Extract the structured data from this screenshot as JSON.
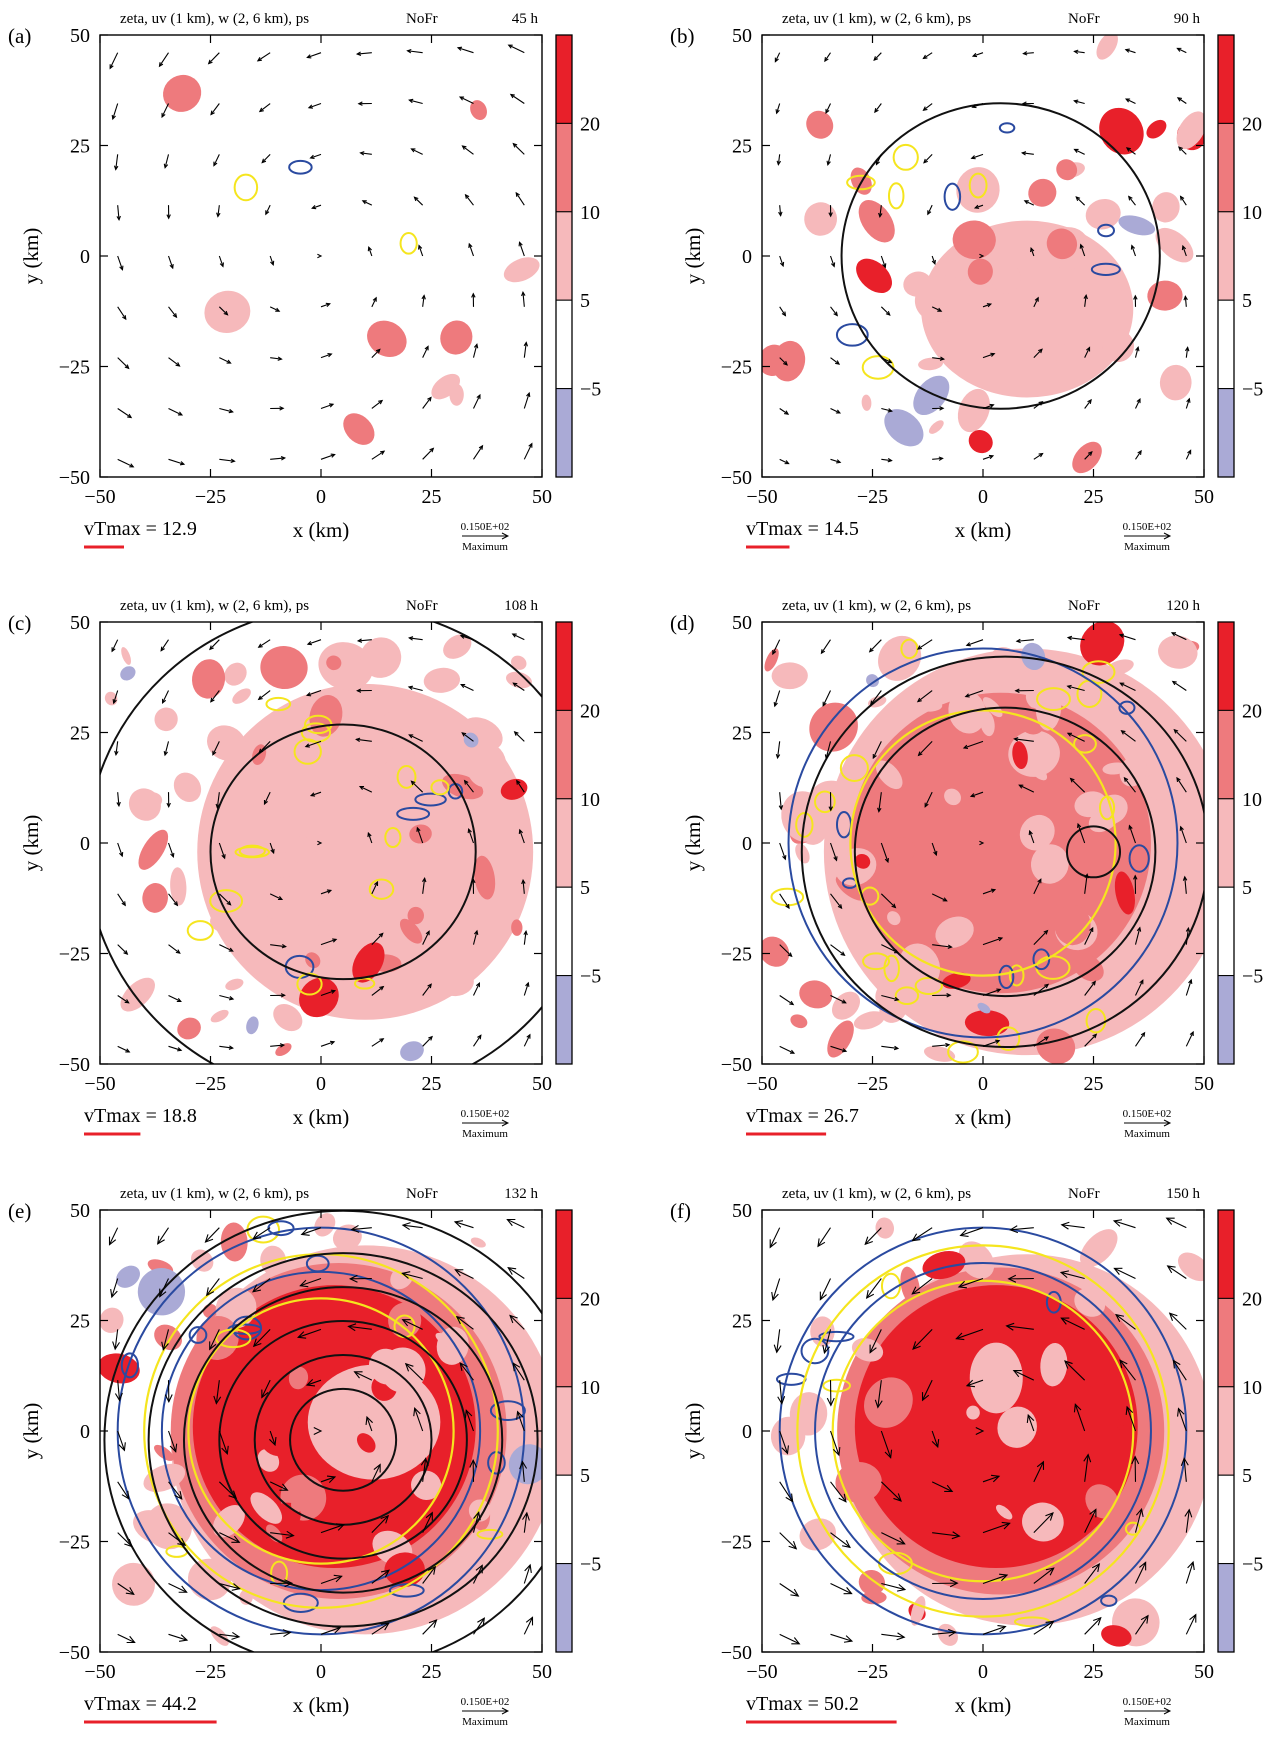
{
  "figure": {
    "panel_title": "zeta, uv (1 km), w (2, 6 km), ps",
    "experiment": "NoFr",
    "xlabel": "x (km)",
    "ylabel": "y (km)",
    "x_ticks": [
      "−50",
      "−25",
      "0",
      "25",
      "50"
    ],
    "y_ticks": [
      "50",
      "25",
      "0",
      "−25",
      "−50"
    ],
    "colorbar_labels": [
      "20",
      "10",
      "5",
      "−5"
    ],
    "colorbar_colors": [
      "#e8202a",
      "#ee7a7d",
      "#f6b9bb",
      "#ffffff",
      "#aaaad6"
    ],
    "ref_vector_value": "0.150E+02",
    "ref_vector_label": "Maximum",
    "vtmax_prefix": "vTmax = "
  },
  "colors": {
    "zeta_strong": "#e8202a",
    "zeta_mid": "#ee7a7d",
    "zeta_weak": "#f6b9bb",
    "zeta_negative": "#aaaad6",
    "updraft_2km": "#f5e51e",
    "updraft_6km": "#2a4aa0",
    "pressure": "#111111",
    "vtmax_bar": "#e8202a"
  },
  "chart_data": [
    {
      "type": "heatmap",
      "label": "(a)",
      "time": "45 h",
      "vtmax": "12.9",
      "xlim": [
        -50,
        50
      ],
      "ylim": [
        -50,
        50
      ],
      "intensity": 0,
      "psc_rings": [],
      "rings_6": [],
      "rings_2": []
    },
    {
      "type": "heatmap",
      "label": "(b)",
      "time": "90 h",
      "vtmax": "14.5",
      "xlim": [
        -50,
        50
      ],
      "ylim": [
        -50,
        50
      ],
      "intensity": 1,
      "psc_rings": [
        36
      ],
      "rings_6": [],
      "rings_2": []
    },
    {
      "type": "heatmap",
      "label": "(c)",
      "time": "108 h",
      "vtmax": "18.8",
      "xlim": [
        -50,
        50
      ],
      "ylim": [
        -50,
        50
      ],
      "intensity": 2,
      "psc_rings": [
        30,
        58
      ],
      "rings_6": [],
      "rings_2": []
    },
    {
      "type": "heatmap",
      "label": "(d)",
      "time": "120 h",
      "vtmax": "26.7",
      "xlim": [
        -50,
        50
      ],
      "ylim": [
        -50,
        50
      ],
      "intensity": 3,
      "psc_rings": [
        6,
        34,
        46
      ],
      "rings_6": [
        44
      ],
      "rings_2": [
        30
      ]
    },
    {
      "type": "heatmap",
      "label": "(e)",
      "time": "132 h",
      "vtmax": "44.2",
      "xlim": [
        -50,
        50
      ],
      "ylim": [
        -50,
        50
      ],
      "intensity": 4,
      "psc_rings": [
        12,
        20,
        28,
        36,
        44,
        54
      ],
      "rings_6": [
        36,
        46
      ],
      "rings_2": [
        30,
        40
      ]
    },
    {
      "type": "heatmap",
      "label": "(f)",
      "time": "150 h",
      "vtmax": "50.2",
      "xlim": [
        -50,
        50
      ],
      "ylim": [
        -50,
        50
      ],
      "intensity": 5,
      "psc_rings": [],
      "rings_6": [
        38,
        46
      ],
      "rings_2": [
        34,
        42
      ]
    }
  ]
}
